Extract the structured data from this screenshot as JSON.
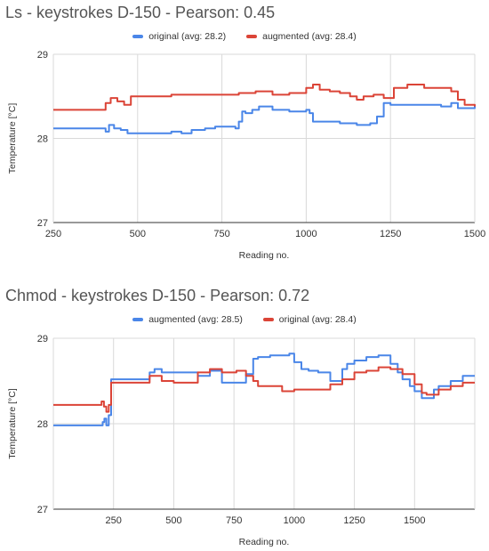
{
  "chart_data": [
    {
      "type": "line",
      "title": "Ls - keystrokes D-150 - Pearson: 0.45",
      "xlabel": "Reading no.",
      "ylabel": "Temperature [°C]",
      "xlim": [
        250,
        1500
      ],
      "ylim": [
        27,
        29
      ],
      "xticks": [
        "250",
        "500",
        "750",
        "1000",
        "1250",
        "1500"
      ],
      "yticks": [
        "27",
        "28",
        "29"
      ],
      "grid": true,
      "legend_position": "top",
      "series": [
        {
          "name": "original (avg: 28.2)",
          "color": "#4a86e8",
          "x": [
            250,
            395,
            405,
            415,
            430,
            450,
            470,
            500,
            550,
            600,
            630,
            660,
            700,
            730,
            760,
            790,
            800,
            810,
            820,
            840,
            860,
            880,
            900,
            950,
            1000,
            1010,
            1020,
            1050,
            1100,
            1150,
            1190,
            1210,
            1230,
            1250,
            1300,
            1350,
            1400,
            1430,
            1450,
            1500
          ],
          "y": [
            28.12,
            28.12,
            28.08,
            28.16,
            28.12,
            28.1,
            28.06,
            28.06,
            28.06,
            28.08,
            28.06,
            28.1,
            28.12,
            28.14,
            28.14,
            28.12,
            28.2,
            28.32,
            28.3,
            28.34,
            28.38,
            28.38,
            28.34,
            28.32,
            28.34,
            28.3,
            28.2,
            28.2,
            28.18,
            28.16,
            28.18,
            28.26,
            28.42,
            28.4,
            28.4,
            28.4,
            28.38,
            28.42,
            28.36,
            28.4
          ]
        },
        {
          "name": "augmented (avg: 28.4)",
          "color": "#db4437",
          "x": [
            250,
            395,
            405,
            420,
            440,
            460,
            480,
            500,
            600,
            700,
            800,
            850,
            900,
            950,
            1000,
            1020,
            1040,
            1070,
            1100,
            1130,
            1150,
            1170,
            1200,
            1230,
            1260,
            1300,
            1350,
            1400,
            1430,
            1450,
            1470,
            1500
          ],
          "y": [
            28.34,
            28.34,
            28.42,
            28.48,
            28.44,
            28.4,
            28.5,
            28.5,
            28.52,
            28.52,
            28.54,
            28.56,
            28.52,
            28.54,
            28.6,
            28.64,
            28.58,
            28.56,
            28.54,
            28.5,
            28.46,
            28.5,
            28.52,
            28.48,
            28.6,
            28.64,
            28.6,
            28.6,
            28.56,
            28.46,
            28.4,
            28.38
          ]
        }
      ]
    },
    {
      "type": "line",
      "title": "Chmod - keystrokes D-150 - Pearson: 0.72",
      "xlabel": "Reading no.",
      "ylabel": "Temperature [°C]",
      "xlim": [
        0,
        1750
      ],
      "ylim": [
        27,
        29
      ],
      "xticks": [
        "250",
        "500",
        "750",
        "1000",
        "1250",
        "1500"
      ],
      "yticks": [
        "27",
        "28",
        "29"
      ],
      "grid": true,
      "legend_position": "top",
      "series": [
        {
          "name": "augmented (avg: 28.5)",
          "color": "#4a86e8",
          "x": [
            0,
            200,
            205,
            212,
            220,
            230,
            240,
            300,
            400,
            420,
            450,
            500,
            550,
            600,
            650,
            700,
            760,
            800,
            830,
            850,
            900,
            950,
            980,
            1000,
            1030,
            1060,
            1100,
            1150,
            1180,
            1200,
            1220,
            1250,
            1300,
            1350,
            1400,
            1430,
            1450,
            1480,
            1500,
            1530,
            1550,
            1580,
            1600,
            1650,
            1700,
            1750
          ],
          "y": [
            27.98,
            27.98,
            28.02,
            28.06,
            27.98,
            28.1,
            28.52,
            28.52,
            28.6,
            28.64,
            28.6,
            28.6,
            28.6,
            28.56,
            28.62,
            28.48,
            28.48,
            28.58,
            28.76,
            28.78,
            28.8,
            28.8,
            28.82,
            28.72,
            28.64,
            28.62,
            28.6,
            28.5,
            28.5,
            28.64,
            28.7,
            28.74,
            28.78,
            28.8,
            28.7,
            28.6,
            28.52,
            28.44,
            28.38,
            28.3,
            28.3,
            28.4,
            28.44,
            28.5,
            28.56,
            28.56
          ]
        },
        {
          "name": "original (avg: 28.4)",
          "color": "#db4437",
          "x": [
            0,
            190,
            200,
            210,
            220,
            230,
            240,
            300,
            380,
            400,
            430,
            450,
            500,
            550,
            600,
            650,
            700,
            760,
            800,
            830,
            850,
            900,
            950,
            1000,
            1100,
            1150,
            1200,
            1250,
            1300,
            1350,
            1400,
            1450,
            1500,
            1530,
            1550,
            1600,
            1650,
            1700,
            1750
          ],
          "y": [
            28.22,
            28.22,
            28.26,
            28.2,
            28.14,
            28.22,
            28.48,
            28.48,
            28.48,
            28.56,
            28.56,
            28.5,
            28.48,
            28.48,
            28.6,
            28.64,
            28.6,
            28.62,
            28.56,
            28.5,
            28.44,
            28.44,
            28.38,
            28.4,
            28.4,
            28.46,
            28.52,
            28.6,
            28.62,
            28.66,
            28.64,
            28.58,
            28.46,
            28.36,
            28.34,
            28.4,
            28.44,
            28.48,
            28.48
          ]
        }
      ]
    }
  ]
}
